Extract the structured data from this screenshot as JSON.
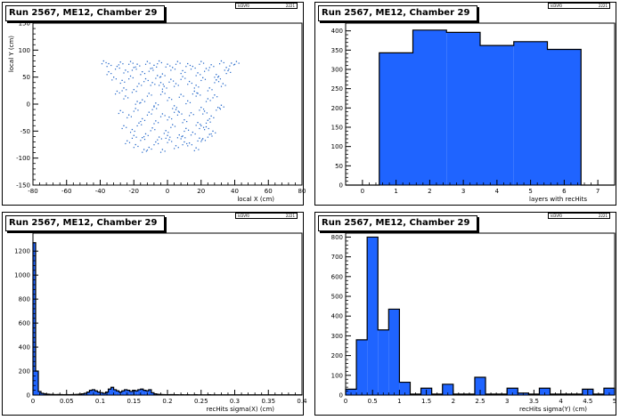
{
  "chart_data": [
    {
      "type": "scatter",
      "title": "Run 2567, ME12, Chamber 29",
      "xlabel": "local X (cm)",
      "ylabel": "local Y (cm)",
      "xlim": [
        -80,
        80
      ],
      "ylim": [
        -150,
        150
      ],
      "x_ticks": [
        -80,
        -60,
        -40,
        -20,
        0,
        20,
        40,
        60,
        80
      ],
      "y_ticks": [
        -150,
        -100,
        -50,
        0,
        50,
        100,
        150
      ],
      "color": "#1f64c8",
      "points": [
        [
          -38,
          80
        ],
        [
          -35,
          75
        ],
        [
          -30,
          70
        ],
        [
          -28,
          78
        ],
        [
          -25,
          63
        ],
        [
          -22,
          79
        ],
        [
          -20,
          68
        ],
        [
          -18,
          74
        ],
        [
          -15,
          60
        ],
        [
          -12,
          79
        ],
        [
          -10,
          66
        ],
        [
          -8,
          72
        ],
        [
          -5,
          80
        ],
        [
          -3,
          56
        ],
        [
          0,
          74
        ],
        [
          3,
          68
        ],
        [
          6,
          79
        ],
        [
          9,
          62
        ],
        [
          12,
          75
        ],
        [
          15,
          70
        ],
        [
          18,
          58
        ],
        [
          20,
          79
        ],
        [
          23,
          66
        ],
        [
          26,
          73
        ],
        [
          29,
          55
        ],
        [
          32,
          80
        ],
        [
          35,
          68
        ],
        [
          38,
          76
        ],
        [
          41,
          79
        ],
        [
          -32,
          50
        ],
        [
          -27,
          44
        ],
        [
          -22,
          52
        ],
        [
          -17,
          38
        ],
        [
          -13,
          47
        ],
        [
          -9,
          40
        ],
        [
          -6,
          53
        ],
        [
          -2,
          33
        ],
        [
          2,
          46
        ],
        [
          5,
          38
        ],
        [
          9,
          51
        ],
        [
          13,
          42
        ],
        [
          17,
          35
        ],
        [
          21,
          49
        ],
        [
          25,
          30
        ],
        [
          29,
          45
        ],
        [
          33,
          38
        ],
        [
          -30,
          24
        ],
        [
          -25,
          15
        ],
        [
          -20,
          27
        ],
        [
          -15,
          8
        ],
        [
          -11,
          20
        ],
        [
          -7,
          2
        ],
        [
          -3,
          23
        ],
        [
          1,
          12
        ],
        [
          4,
          -3
        ],
        [
          8,
          18
        ],
        [
          12,
          6
        ],
        [
          16,
          24
        ],
        [
          20,
          -6
        ],
        [
          24,
          10
        ],
        [
          28,
          17
        ],
        [
          32,
          -2
        ],
        [
          -28,
          -12
        ],
        [
          -23,
          -20
        ],
        [
          -19,
          -8
        ],
        [
          -15,
          -27
        ],
        [
          -11,
          -15
        ],
        [
          -7,
          -31
        ],
        [
          -3,
          -18
        ],
        [
          1,
          -24
        ],
        [
          5,
          -10
        ],
        [
          10,
          -29
        ],
        [
          14,
          -16
        ],
        [
          18,
          -34
        ],
        [
          22,
          -13
        ],
        [
          26,
          -22
        ],
        [
          30,
          -6
        ],
        [
          -26,
          -40
        ],
        [
          -21,
          -47
        ],
        [
          -17,
          -35
        ],
        [
          -13,
          -55
        ],
        [
          -9,
          -44
        ],
        [
          -5,
          -61
        ],
        [
          -1,
          -49
        ],
        [
          3,
          -38
        ],
        [
          7,
          -57
        ],
        [
          11,
          -45
        ],
        [
          15,
          -52
        ],
        [
          19,
          -63
        ],
        [
          23,
          -42
        ],
        [
          27,
          -50
        ],
        [
          -24,
          -68
        ],
        [
          -19,
          -75
        ],
        [
          -15,
          -62
        ],
        [
          -11,
          -80
        ],
        [
          -7,
          -70
        ],
        [
          -3,
          -84
        ],
        [
          1,
          -66
        ],
        [
          5,
          -77
        ],
        [
          9,
          -59
        ],
        [
          13,
          -72
        ],
        [
          17,
          -81
        ],
        [
          21,
          -64
        ],
        [
          25,
          -56
        ],
        [
          -14,
          -84
        ],
        [
          -20,
          -58
        ],
        [
          0,
          -58
        ],
        [
          10,
          -70
        ],
        [
          20,
          -40
        ],
        [
          -35,
          60
        ],
        [
          36,
          62
        ],
        [
          -18,
          5
        ],
        [
          7,
          -15
        ],
        [
          -4,
          40
        ],
        [
          18,
          20
        ],
        [
          24,
          -30
        ],
        [
          -26,
          30
        ],
        [
          30,
          50
        ],
        [
          -8,
          -5
        ]
      ]
    },
    {
      "type": "bar",
      "title": "Run 2567, ME12, Chamber 29",
      "xlabel": "layers with recHits",
      "ylabel": "",
      "xlim": [
        -0.5,
        7.5
      ],
      "ylim": [
        0,
        420
      ],
      "x_ticks": [
        0,
        1,
        2,
        3,
        4,
        5,
        6,
        7
      ],
      "y_ticks": [
        0,
        50,
        100,
        150,
        200,
        250,
        300,
        350,
        400
      ],
      "bin_width": 1,
      "color": "#1f64ff",
      "bins": [
        {
          "center": 0,
          "value": 0
        },
        {
          "center": 1,
          "value": 343
        },
        {
          "center": 2,
          "value": 402
        },
        {
          "center": 3,
          "value": 396
        },
        {
          "center": 4,
          "value": 362
        },
        {
          "center": 5,
          "value": 372
        },
        {
          "center": 6,
          "value": 352
        },
        {
          "center": 7,
          "value": 0
        }
      ]
    },
    {
      "type": "bar",
      "title": "Run 2567, ME12, Chamber 29",
      "xlabel": "recHits sigma(X) (cm)",
      "ylabel": "",
      "xlim": [
        0,
        0.4
      ],
      "ylim": [
        0,
        1350
      ],
      "x_ticks": [
        0,
        0.05,
        0.1,
        0.15,
        0.2,
        0.25,
        0.3,
        0.35,
        0.4
      ],
      "y_ticks": [
        0,
        200,
        400,
        600,
        800,
        1000,
        1200
      ],
      "bin_width": 0.004,
      "color": "#1f64ff",
      "bins": [
        {
          "center": 0.002,
          "value": 1270
        },
        {
          "center": 0.006,
          "value": 200
        },
        {
          "center": 0.01,
          "value": 30
        },
        {
          "center": 0.014,
          "value": 15
        },
        {
          "center": 0.018,
          "value": 10
        },
        {
          "center": 0.022,
          "value": 8
        },
        {
          "center": 0.026,
          "value": 6
        },
        {
          "center": 0.03,
          "value": 5
        },
        {
          "center": 0.034,
          "value": 4
        },
        {
          "center": 0.038,
          "value": 5
        },
        {
          "center": 0.042,
          "value": 4
        },
        {
          "center": 0.046,
          "value": 3
        },
        {
          "center": 0.05,
          "value": 4
        },
        {
          "center": 0.054,
          "value": 3
        },
        {
          "center": 0.058,
          "value": 4
        },
        {
          "center": 0.062,
          "value": 5
        },
        {
          "center": 0.066,
          "value": 6
        },
        {
          "center": 0.07,
          "value": 8
        },
        {
          "center": 0.074,
          "value": 10
        },
        {
          "center": 0.078,
          "value": 15
        },
        {
          "center": 0.082,
          "value": 25
        },
        {
          "center": 0.086,
          "value": 40
        },
        {
          "center": 0.09,
          "value": 45
        },
        {
          "center": 0.094,
          "value": 35
        },
        {
          "center": 0.098,
          "value": 25
        },
        {
          "center": 0.102,
          "value": 20
        },
        {
          "center": 0.106,
          "value": 15
        },
        {
          "center": 0.11,
          "value": 25
        },
        {
          "center": 0.114,
          "value": 50
        },
        {
          "center": 0.118,
          "value": 65
        },
        {
          "center": 0.122,
          "value": 45
        },
        {
          "center": 0.126,
          "value": 35
        },
        {
          "center": 0.13,
          "value": 25
        },
        {
          "center": 0.134,
          "value": 35
        },
        {
          "center": 0.138,
          "value": 45
        },
        {
          "center": 0.142,
          "value": 40
        },
        {
          "center": 0.146,
          "value": 30
        },
        {
          "center": 0.15,
          "value": 40
        },
        {
          "center": 0.154,
          "value": 35
        },
        {
          "center": 0.158,
          "value": 45
        },
        {
          "center": 0.162,
          "value": 50
        },
        {
          "center": 0.166,
          "value": 40
        },
        {
          "center": 0.17,
          "value": 35
        },
        {
          "center": 0.174,
          "value": 45
        },
        {
          "center": 0.178,
          "value": 20
        },
        {
          "center": 0.182,
          "value": 10
        },
        {
          "center": 0.186,
          "value": 7
        },
        {
          "center": 0.19,
          "value": 5
        },
        {
          "center": 0.194,
          "value": 4
        },
        {
          "center": 0.198,
          "value": 3
        },
        {
          "center": 0.202,
          "value": 3
        },
        {
          "center": 0.206,
          "value": 4
        },
        {
          "center": 0.21,
          "value": 3
        },
        {
          "center": 0.214,
          "value": 3
        },
        {
          "center": 0.218,
          "value": 2
        },
        {
          "center": 0.222,
          "value": 3
        },
        {
          "center": 0.226,
          "value": 2
        },
        {
          "center": 0.23,
          "value": 3
        },
        {
          "center": 0.234,
          "value": 2
        },
        {
          "center": 0.238,
          "value": 2
        },
        {
          "center": 0.242,
          "value": 3
        },
        {
          "center": 0.246,
          "value": 2
        },
        {
          "center": 0.25,
          "value": 2
        },
        {
          "center": 0.254,
          "value": 2
        },
        {
          "center": 0.258,
          "value": 2
        },
        {
          "center": 0.262,
          "value": 3
        },
        {
          "center": 0.266,
          "value": 2
        },
        {
          "center": 0.27,
          "value": 2
        },
        {
          "center": 0.274,
          "value": 2
        },
        {
          "center": 0.278,
          "value": 2
        },
        {
          "center": 0.282,
          "value": 2
        },
        {
          "center": 0.286,
          "value": 2
        },
        {
          "center": 0.29,
          "value": 2
        },
        {
          "center": 0.294,
          "value": 2
        },
        {
          "center": 0.298,
          "value": 2
        },
        {
          "center": 0.302,
          "value": 2
        },
        {
          "center": 0.306,
          "value": 2
        },
        {
          "center": 0.31,
          "value": 2
        },
        {
          "center": 0.314,
          "value": 2
        },
        {
          "center": 0.318,
          "value": 2
        },
        {
          "center": 0.322,
          "value": 2
        },
        {
          "center": 0.326,
          "value": 2
        },
        {
          "center": 0.33,
          "value": 2
        },
        {
          "center": 0.334,
          "value": 2
        },
        {
          "center": 0.338,
          "value": 2
        },
        {
          "center": 0.342,
          "value": 2
        },
        {
          "center": 0.346,
          "value": 2
        },
        {
          "center": 0.35,
          "value": 2
        },
        {
          "center": 0.354,
          "value": 2
        },
        {
          "center": 0.358,
          "value": 2
        },
        {
          "center": 0.362,
          "value": 2
        },
        {
          "center": 0.366,
          "value": 2
        },
        {
          "center": 0.37,
          "value": 2
        },
        {
          "center": 0.374,
          "value": 2
        },
        {
          "center": 0.378,
          "value": 2
        },
        {
          "center": 0.382,
          "value": 2
        },
        {
          "center": 0.386,
          "value": 2
        },
        {
          "center": 0.39,
          "value": 2
        },
        {
          "center": 0.394,
          "value": 2
        },
        {
          "center": 0.398,
          "value": 2
        }
      ]
    },
    {
      "type": "bar",
      "title": "Run 2567, ME12, Chamber 29",
      "xlabel": "recHits sigma(Y) (cm)",
      "ylabel": "",
      "xlim": [
        0,
        5
      ],
      "ylim": [
        0,
        820
      ],
      "x_ticks": [
        0,
        0.5,
        1,
        1.5,
        2,
        2.5,
        3,
        3.5,
        4,
        4.5,
        5
      ],
      "y_ticks": [
        0,
        100,
        200,
        300,
        400,
        500,
        600,
        700,
        800
      ],
      "bin_width": 0.2,
      "color": "#1f64ff",
      "bins": [
        {
          "center": 0.1,
          "value": 30
        },
        {
          "center": 0.3,
          "value": 280
        },
        {
          "center": 0.5,
          "value": 800
        },
        {
          "center": 0.7,
          "value": 330
        },
        {
          "center": 0.9,
          "value": 435
        },
        {
          "center": 1.1,
          "value": 65
        },
        {
          "center": 1.3,
          "value": 5
        },
        {
          "center": 1.5,
          "value": 35
        },
        {
          "center": 1.7,
          "value": 5
        },
        {
          "center": 1.9,
          "value": 55
        },
        {
          "center": 2.1,
          "value": 5
        },
        {
          "center": 2.3,
          "value": 5
        },
        {
          "center": 2.5,
          "value": 90
        },
        {
          "center": 2.7,
          "value": 5
        },
        {
          "center": 2.9,
          "value": 5
        },
        {
          "center": 3.1,
          "value": 35
        },
        {
          "center": 3.3,
          "value": 10
        },
        {
          "center": 3.5,
          "value": 5
        },
        {
          "center": 3.7,
          "value": 35
        },
        {
          "center": 3.9,
          "value": 5
        },
        {
          "center": 4.1,
          "value": 5
        },
        {
          "center": 4.3,
          "value": 5
        },
        {
          "center": 4.5,
          "value": 30
        },
        {
          "center": 4.7,
          "value": 5
        },
        {
          "center": 4.9,
          "value": 35
        }
      ]
    }
  ],
  "stats_box": {
    "left": "ld3Vf0",
    "right": "2221"
  }
}
